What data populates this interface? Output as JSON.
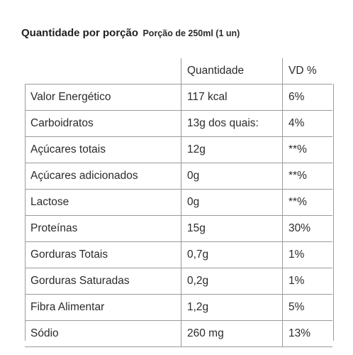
{
  "header": {
    "title": "Quantidade por porção",
    "serving": "Porção de 250ml (1 un)"
  },
  "table": {
    "columns": [
      "",
      "Quantidade",
      "VD %"
    ],
    "rows": [
      {
        "name": "Valor Energético",
        "amount": "117 kcal",
        "vd": "6%"
      },
      {
        "name": "Carboidratos",
        "amount": "13g dos quais:",
        "vd": "4%"
      },
      {
        "name": "Açúcares totais",
        "amount": "12g",
        "vd": "**%"
      },
      {
        "name": "Açúcares adicionados",
        "amount": "0g",
        "vd": "**%"
      },
      {
        "name": "Lactose",
        "amount": "0g",
        "vd": "**%"
      },
      {
        "name": "Proteínas",
        "amount": "15g",
        "vd": "30%"
      },
      {
        "name": "Gorduras Totais",
        "amount": "0,7g",
        "vd": "1%"
      },
      {
        "name": "Gorduras Saturadas",
        "amount": "0,2g",
        "vd": "1%"
      },
      {
        "name": "Fibra Alimentar",
        "amount": "1,2g",
        "vd": "5%"
      },
      {
        "name": "Sódio",
        "amount": "260 mg",
        "vd": "13%"
      }
    ]
  }
}
